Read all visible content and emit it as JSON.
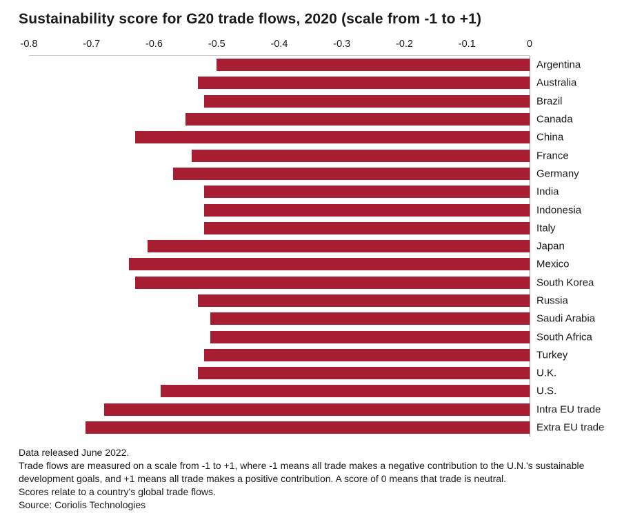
{
  "title": "Sustainability score for G20 trade flows, 2020 (scale from -1 to +1)",
  "chart_data": {
    "type": "bar",
    "orientation": "horizontal",
    "title": "Sustainability score for G20 trade flows, 2020 (scale from -1 to +1)",
    "bar_color": "#a71d31",
    "xlim": [
      -0.8,
      0
    ],
    "x_ticks": [
      "-0.8",
      "-0.7",
      "-0.6",
      "-0.5",
      "-0.4",
      "-0.3",
      "-0.2",
      "-0.1",
      "0"
    ],
    "grid": false,
    "legend": "none",
    "categories": [
      "Argentina",
      "Australia",
      "Brazil",
      "Canada",
      "China",
      "France",
      "Germany",
      "India",
      "Indonesia",
      "Italy",
      "Japan",
      "Mexico",
      "South Korea",
      "Russia",
      "Saudi Arabia",
      "South Africa",
      "Turkey",
      "U.K.",
      "U.S.",
      "Intra EU trade",
      "Extra EU trade"
    ],
    "values": [
      -0.5,
      -0.53,
      -0.52,
      -0.55,
      -0.63,
      -0.54,
      -0.57,
      -0.52,
      -0.52,
      -0.52,
      -0.61,
      -0.64,
      -0.63,
      -0.53,
      -0.51,
      -0.51,
      -0.52,
      -0.53,
      -0.59,
      -0.68,
      -0.71
    ]
  },
  "footer": {
    "line1": "Data released June 2022.",
    "line2": "Trade flows are measured on a scale from -1 to +1, where -1 means all trade makes a negative contribution to the U.N.'s sustainable development goals, and +1 means all trade makes a positive contribution. A score of 0 means that trade is neutral.",
    "line3": "Scores relate to a country's global trade flows.",
    "line4": "Source: Coriolis Technologies"
  }
}
